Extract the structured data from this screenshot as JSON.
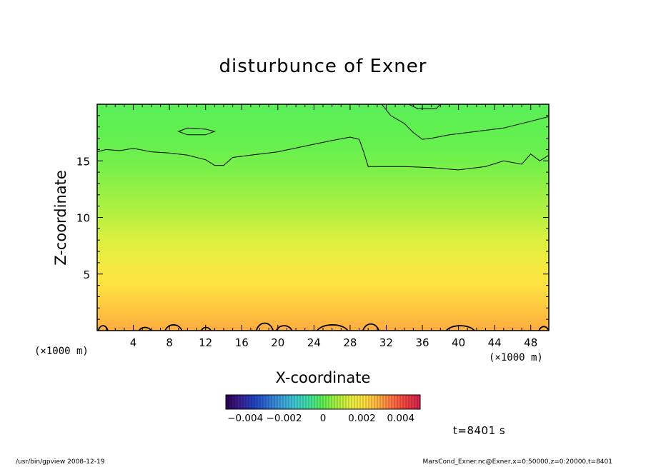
{
  "chart_data": {
    "type": "heatmap",
    "title": "disturbunce of Exner",
    "xlabel": "X-coordinate",
    "ylabel": "Z-coordinate",
    "x_unit_left": "(×1000 m)",
    "x_unit_right": "(×1000 m)",
    "xlim": [
      0,
      50
    ],
    "ylim": [
      0,
      20
    ],
    "x_ticks": [
      4,
      8,
      12,
      16,
      20,
      24,
      28,
      32,
      36,
      40,
      44,
      48
    ],
    "x_tick_labels": [
      "4",
      "8",
      "12",
      "16",
      "20",
      "24",
      "28",
      "32",
      "36",
      "40",
      "44",
      "48"
    ],
    "y_ticks": [
      5,
      10,
      15
    ],
    "y_tick_labels": [
      "5",
      "10",
      "15"
    ],
    "field_by_height": [
      {
        "z": 0,
        "value": 0.0029
      },
      {
        "z": 2,
        "value": 0.0025
      },
      {
        "z": 4,
        "value": 0.0021
      },
      {
        "z": 6,
        "value": 0.0017
      },
      {
        "z": 8,
        "value": 0.0013
      },
      {
        "z": 10,
        "value": 0.0009
      },
      {
        "z": 12,
        "value": 0.0006
      },
      {
        "z": 14,
        "value": 0.0003
      },
      {
        "z": 16,
        "value": 0.0001
      },
      {
        "z": 18,
        "value": 0.0
      },
      {
        "z": 20,
        "value": -0.0001
      }
    ],
    "contour_upper": {
      "x": [
        0,
        1,
        2.5,
        4,
        6,
        8,
        10,
        12,
        13,
        14,
        15,
        17,
        20,
        23,
        26,
        28,
        29,
        29.5,
        30,
        31,
        34,
        37,
        40,
        43,
        45,
        47,
        48,
        49,
        50
      ],
      "z": [
        15.8,
        16.0,
        15.9,
        16.1,
        15.8,
        15.7,
        15.5,
        15.1,
        14.6,
        14.6,
        15.3,
        15.5,
        15.8,
        16.3,
        16.8,
        17.1,
        16.9,
        15.8,
        14.5,
        14.5,
        14.5,
        14.4,
        14.2,
        14.5,
        15.0,
        14.7,
        15.6,
        15.0,
        15.5
      ]
    },
    "contour_top_right": {
      "x": [
        31.5,
        32.5,
        34,
        35,
        36,
        37,
        39,
        42,
        45,
        48,
        50
      ],
      "z": [
        20.0,
        19.0,
        18.3,
        17.5,
        16.9,
        17.0,
        17.3,
        17.6,
        17.9,
        18.5,
        18.9
      ]
    },
    "contour_top_dip": {
      "x": [
        34.5,
        35.5,
        37.5,
        38
      ],
      "z": [
        20.0,
        19.6,
        19.6,
        20.0
      ]
    },
    "contour_island": {
      "x": [
        9,
        10,
        12,
        13,
        12,
        10,
        9
      ],
      "z": [
        17.6,
        17.9,
        17.8,
        17.6,
        17.3,
        17.3,
        17.6
      ]
    },
    "bottom_bumps": [
      {
        "x0": 0.1,
        "x1": 1.2,
        "h": 0.6
      },
      {
        "x0": 4.6,
        "x1": 6.0,
        "h": 0.4
      },
      {
        "x0": 7.5,
        "x1": 9.4,
        "h": 0.7
      },
      {
        "x0": 11.5,
        "x1": 12.6,
        "h": 0.4
      },
      {
        "x0": 17.6,
        "x1": 19.5,
        "h": 0.9
      },
      {
        "x0": 19.8,
        "x1": 21.6,
        "h": 0.6
      },
      {
        "x0": 24.3,
        "x1": 27.8,
        "h": 0.7
      },
      {
        "x0": 29.4,
        "x1": 31.2,
        "h": 0.8
      },
      {
        "x0": 38.6,
        "x1": 41.8,
        "h": 0.6
      },
      {
        "x0": 48.9,
        "x1": 50.0,
        "h": 0.5
      }
    ],
    "colorbar": {
      "min": -0.005,
      "max": 0.005,
      "colors": [
        "#2a004f",
        "#3a1f8f",
        "#1f3fbf",
        "#2f6fd0",
        "#3d9fd8",
        "#40c8d0",
        "#40e0a0",
        "#5ff050",
        "#a8f040",
        "#e8f040",
        "#ffe040",
        "#ffb040",
        "#ff7040",
        "#f04040",
        "#d02050"
      ],
      "tick_values": [
        -0.004,
        -0.002,
        0,
        0.002,
        0.004
      ],
      "tick_labels": [
        "−0.004",
        "−0.002",
        "0",
        "0.002",
        "0.004"
      ]
    }
  },
  "annotations": {
    "time": "t=8401 s"
  },
  "footer": {
    "left": "/usr/bin/gpview   2008-12-19",
    "right": "MarsCond_Exner.nc@Exner,x=0:50000,z=0:20000,t=8401"
  }
}
